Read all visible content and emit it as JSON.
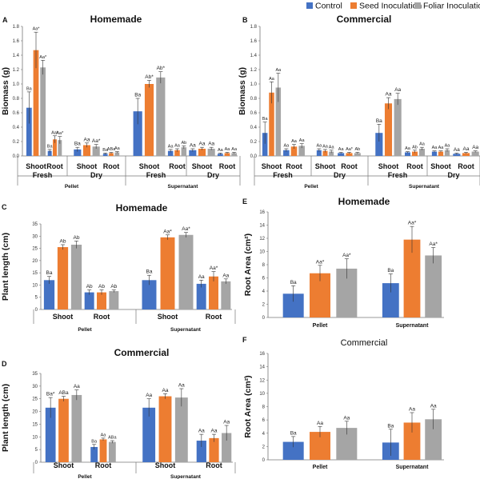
{
  "figure": {
    "legend": [
      {
        "name": "Control",
        "color": "#4472c4"
      },
      {
        "name": "Seed Inoculation",
        "color": "#ed7d31"
      },
      {
        "name": "Foliar Inoculation",
        "color": "#a5a5a5"
      }
    ]
  },
  "chart_data": [
    {
      "id": "A",
      "type": "bar",
      "letter": "A",
      "title": "Homemade",
      "ylabel": "Biomass (g)",
      "ylim": [
        0,
        1.8
      ],
      "ytick_step": 0.2,
      "ytick_decimals": 1,
      "series": [
        {
          "name": "Control",
          "values": [
            0.67,
            0.07,
            0.09,
            0.03,
            0.62,
            0.07,
            0.08,
            0.03
          ]
        },
        {
          "name": "Seed Inoculation",
          "values": [
            1.47,
            0.23,
            0.15,
            0.04,
            1.0,
            0.08,
            0.1,
            0.04
          ]
        },
        {
          "name": "Foliar Inoculation",
          "values": [
            1.23,
            0.22,
            0.13,
            0.05,
            1.09,
            0.12,
            0.1,
            0.04
          ]
        }
      ],
      "errors": [
        [
          0.22,
          0.02,
          0.03,
          0.01,
          0.18,
          0.02,
          0.02,
          0.01
        ],
        [
          0.25,
          0.05,
          0.03,
          0.01,
          0.05,
          0.02,
          0.02,
          0.01
        ],
        [
          0.1,
          0.05,
          0.03,
          0.01,
          0.08,
          0.02,
          0.02,
          0.01
        ]
      ],
      "labels": [
        [
          "Ba",
          "Ba",
          "Ba",
          "Ba",
          "Ba",
          "Aa",
          "Aa",
          "Aa"
        ],
        [
          "Aa*",
          "Aa*",
          "Aa",
          "ABa",
          "Ab*",
          "Aa",
          "Aa",
          "Aa"
        ],
        [
          "Aa*",
          "Aa*",
          "Aa*",
          "Aa",
          "Ab*",
          "Ab",
          "Aa",
          "Aa"
        ]
      ],
      "categories": [
        "Shoot",
        "Root",
        "Shoot",
        "Root",
        "Shoot",
        "Root",
        "Shoot",
        "Root"
      ],
      "group_labels": [
        "Fresh",
        "Dry",
        "Fresh",
        "Dry"
      ],
      "top_labels": [
        "Pellet",
        "Supernatant"
      ]
    },
    {
      "id": "B",
      "type": "bar",
      "letter": "B",
      "title": "Commercial",
      "ylabel": "Biomass (g)",
      "ylim": [
        0,
        1.8
      ],
      "ytick_step": 0.2,
      "ytick_decimals": 1,
      "series": [
        {
          "name": "Control",
          "values": [
            0.32,
            0.08,
            0.08,
            0.04,
            0.32,
            0.05,
            0.06,
            0.03
          ]
        },
        {
          "name": "Seed Inoculation",
          "values": [
            0.88,
            0.13,
            0.07,
            0.04,
            0.73,
            0.06,
            0.06,
            0.04
          ]
        },
        {
          "name": "Foliar Inoculation",
          "values": [
            0.95,
            0.14,
            0.06,
            0.04,
            0.79,
            0.1,
            0.08,
            0.06
          ]
        }
      ],
      "errors": [
        [
          0.15,
          0.02,
          0.02,
          0.01,
          0.12,
          0.01,
          0.01,
          0.01
        ],
        [
          0.15,
          0.03,
          0.02,
          0.01,
          0.08,
          0.02,
          0.01,
          0.01
        ],
        [
          0.2,
          0.03,
          0.02,
          0.01,
          0.08,
          0.02,
          0.02,
          0.01
        ]
      ],
      "labels": [
        [
          "Ba",
          "Aa",
          "Aa",
          "Aa",
          "Ba",
          "Aa",
          "Aa",
          "Aa"
        ],
        [
          "Aa",
          "Aa",
          "Aa",
          "Aa*",
          "Aa",
          "Ab",
          "Aa",
          "Aa"
        ],
        [
          "Aa",
          "Aa",
          "Aa",
          "Ab",
          "Aa",
          "Aa",
          "Aa",
          "Aa"
        ]
      ],
      "categories": [
        "Shoot",
        "Root",
        "Shoot",
        "Root",
        "Shoot",
        "Root",
        "Shoot",
        "Root"
      ],
      "group_labels": [
        "Fresh",
        "Dry",
        "Fresh",
        "Dry"
      ],
      "top_labels": [
        "Pellet",
        "Supernatant"
      ]
    },
    {
      "id": "C",
      "type": "bar",
      "letter": "C",
      "title": "Homemade",
      "ylabel": "Plant length (cm)",
      "ylim": [
        0,
        35
      ],
      "ytick_step": 5,
      "ytick_decimals": 0,
      "series": [
        {
          "name": "Control",
          "values": [
            12,
            7,
            12,
            10.5
          ]
        },
        {
          "name": "Seed Inoculation",
          "values": [
            25.5,
            7,
            29.5,
            13.5
          ]
        },
        {
          "name": "Foliar Inoculation",
          "values": [
            26.5,
            7.5,
            30.5,
            11.5
          ]
        }
      ],
      "errors": [
        [
          1.5,
          1,
          2,
          1.5
        ],
        [
          1,
          1,
          1,
          2
        ],
        [
          1.5,
          0.5,
          1,
          1
        ]
      ],
      "labels": [
        [
          "Ba",
          "Ab",
          "Ba",
          "Aa"
        ],
        [
          "Ab",
          "Ab",
          "Aa*",
          "Aa*"
        ],
        [
          "Ab",
          "Ab",
          "Aa*",
          "Aa"
        ]
      ],
      "categories": [
        "Shoot",
        "Root",
        "Shoot",
        "Root"
      ],
      "group_labels": [
        "Pellet",
        "Supernatant"
      ]
    },
    {
      "id": "D",
      "type": "bar",
      "letter": "D",
      "title": "Commercial",
      "ylabel": "Plant length (cm)",
      "ylim": [
        0,
        35
      ],
      "ytick_step": 5,
      "ytick_decimals": 0,
      "series": [
        {
          "name": "Control",
          "values": [
            21.5,
            6,
            21.5,
            8.5
          ]
        },
        {
          "name": "Seed Inoculation",
          "values": [
            25,
            9,
            26,
            9.5
          ]
        },
        {
          "name": "Foliar Inoculation",
          "values": [
            26.5,
            8,
            25.5,
            11.5
          ]
        }
      ],
      "errors": [
        [
          4,
          1,
          3.5,
          2.5
        ],
        [
          1,
          0.5,
          1,
          1.5
        ],
        [
          2,
          0.5,
          3.5,
          3
        ]
      ],
      "labels": [
        [
          "Ba*",
          "Ba",
          "Aa",
          "Aa"
        ],
        [
          "ABa",
          "Aa",
          "Aa",
          "Aa"
        ],
        [
          "Aa",
          "ABa",
          "Aa",
          "Aa"
        ]
      ],
      "categories": [
        "Shoot",
        "Root",
        "Shoot",
        "Root"
      ],
      "group_labels": [
        "Pellet",
        "Supernatant"
      ]
    },
    {
      "id": "E",
      "type": "bar",
      "letter": "E",
      "title": "Homemade",
      "ylabel": "Root Area (cm²)",
      "ylim": [
        0,
        16
      ],
      "ytick_step": 2,
      "ytick_decimals": 0,
      "series": [
        {
          "name": "Control",
          "values": [
            3.6,
            5.2
          ]
        },
        {
          "name": "Seed Inoculation",
          "values": [
            6.7,
            11.8
          ]
        },
        {
          "name": "Foliar Inoculation",
          "values": [
            7.4,
            9.4
          ]
        }
      ],
      "errors": [
        [
          1.2,
          1.4
        ],
        [
          1.2,
          2.0
        ],
        [
          1.5,
          1.2
        ]
      ],
      "labels": [
        [
          "Ba",
          "Ba"
        ],
        [
          "Aa*",
          "Aa*"
        ],
        [
          "Aa*",
          "Aa*"
        ]
      ],
      "categories": [
        "Pellet",
        "Supernatant"
      ]
    },
    {
      "id": "F",
      "type": "bar",
      "letter": "F",
      "title": "Commercial",
      "ylabel": "Root Area (cm²)",
      "ylim": [
        0,
        16
      ],
      "ytick_step": 2,
      "ytick_decimals": 0,
      "series": [
        {
          "name": "Control",
          "values": [
            2.7,
            2.6
          ]
        },
        {
          "name": "Seed Inoculation",
          "values": [
            4.2,
            5.6
          ]
        },
        {
          "name": "Foliar Inoculation",
          "values": [
            4.8,
            6.1
          ]
        }
      ],
      "errors": [
        [
          0.8,
          2.0
        ],
        [
          0.8,
          1.5
        ],
        [
          1.0,
          1.5
        ]
      ],
      "labels": [
        [
          "Ba",
          "Ba"
        ],
        [
          "Aa",
          "Aa"
        ],
        [
          "Aa",
          "Aa"
        ]
      ],
      "categories": [
        "Pellet",
        "Supernatant"
      ]
    }
  ]
}
